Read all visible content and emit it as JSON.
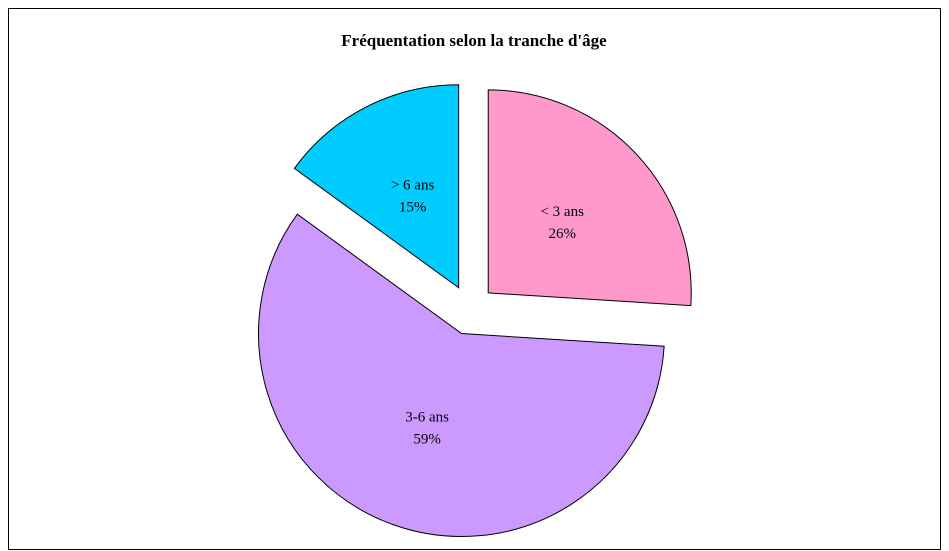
{
  "chart_data": {
    "type": "pie",
    "title": "Fréquentation selon la tranche d'âge",
    "categories": [
      "< 3 ans",
      "3-6 ans",
      "> 6 ans"
    ],
    "values": [
      26,
      59,
      15
    ],
    "value_labels": [
      "26%",
      "59%",
      "15%"
    ],
    "colors": [
      "#FF99CC",
      "#CC99FF",
      "#00CCFF"
    ]
  }
}
